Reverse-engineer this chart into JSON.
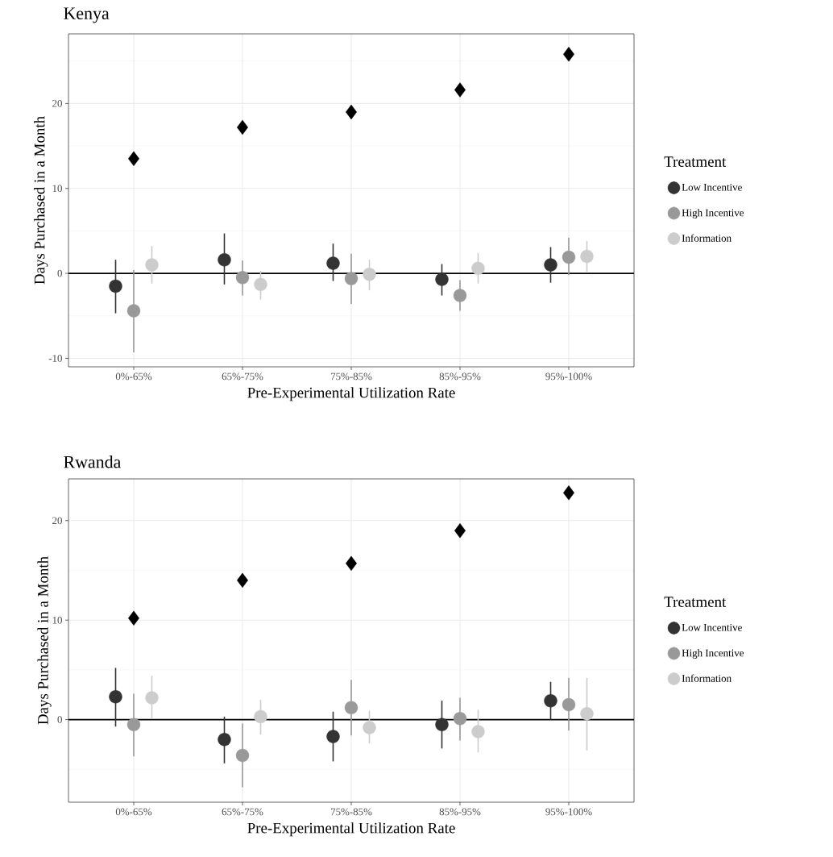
{
  "chart_data": [
    {
      "type": "scatter",
      "title": "Kenya",
      "xlabel": "Pre-Experimental Utilization Rate",
      "ylabel": "Days Purchased in a Month",
      "legend_title": "Treatment",
      "categories": [
        "0%-65%",
        "65%-75%",
        "75%-85%",
        "85%-95%",
        "95%-100%"
      ],
      "ylim": [
        -11,
        28.2
      ],
      "yticks": [
        -10,
        0,
        10,
        20
      ],
      "grid": true,
      "legend": "right",
      "ref_lines": [
        {
          "axis": "y",
          "value": 0,
          "color": "#000000"
        }
      ],
      "series": [
        {
          "name": "Low Incentive",
          "color": "#333333",
          "marker": "circle",
          "values": [
            -1.5,
            1.6,
            1.2,
            -0.7,
            1.0
          ],
          "errors": [
            [
              -4.7,
              1.6
            ],
            [
              -1.3,
              4.7
            ],
            [
              -0.9,
              3.5
            ],
            [
              -2.6,
              1.1
            ],
            [
              -1.1,
              3.1
            ]
          ]
        },
        {
          "name": "High Incentive",
          "color": "#999999",
          "marker": "circle",
          "values": [
            -4.4,
            -0.5,
            -0.6,
            -2.6,
            1.9
          ],
          "errors": [
            [
              -9.3,
              0.4
            ],
            [
              -2.6,
              1.5
            ],
            [
              -3.6,
              2.3
            ],
            [
              -4.4,
              -0.8
            ],
            [
              -0.2,
              4.2
            ]
          ]
        },
        {
          "name": "Information",
          "color": "#cccccc",
          "marker": "circle",
          "values": [
            1.0,
            -1.3,
            -0.1,
            0.6,
            2.0
          ],
          "errors": [
            [
              -1.2,
              3.2
            ],
            [
              -3.1,
              0.3
            ],
            [
              -2.0,
              1.6
            ],
            [
              -1.2,
              2.4
            ],
            [
              0.2,
              3.8
            ]
          ]
        },
        {
          "color": "#000000",
          "marker": "diamond",
          "values": [
            13.5,
            17.2,
            19.0,
            21.6,
            25.8
          ]
        }
      ]
    },
    {
      "type": "scatter",
      "title": "Rwanda",
      "xlabel": "Pre-Experimental Utilization Rate",
      "ylabel": "Days Purchased in a Month",
      "legend_title": "Treatment",
      "categories": [
        "0%-65%",
        "65%-75%",
        "75%-85%",
        "85%-95%",
        "95%-100%"
      ],
      "ylim": [
        -8.3,
        24.2
      ],
      "yticks": [
        0,
        10,
        20
      ],
      "grid": true,
      "legend": "right",
      "ref_lines": [
        {
          "axis": "y",
          "value": 0,
          "color": "#000000"
        }
      ],
      "series": [
        {
          "name": "Low Incentive",
          "color": "#333333",
          "marker": "circle",
          "values": [
            2.3,
            -2.0,
            -1.7,
            -0.5,
            1.9
          ],
          "errors": [
            [
              -0.7,
              5.2
            ],
            [
              -4.4,
              0.3
            ],
            [
              -4.2,
              0.8
            ],
            [
              -2.9,
              1.9
            ],
            [
              0.0,
              3.8
            ]
          ]
        },
        {
          "name": "High Incentive",
          "color": "#999999",
          "marker": "circle",
          "values": [
            -0.5,
            -3.6,
            1.2,
            0.1,
            1.5
          ],
          "errors": [
            [
              -3.7,
              2.6
            ],
            [
              -6.8,
              -0.4
            ],
            [
              -1.6,
              4.0
            ],
            [
              -2.1,
              2.2
            ],
            [
              -1.1,
              4.2
            ]
          ]
        },
        {
          "name": "Information",
          "color": "#cccccc",
          "marker": "circle",
          "values": [
            2.2,
            0.3,
            -0.8,
            -1.2,
            0.6
          ],
          "errors": [
            [
              0.1,
              4.4
            ],
            [
              -1.5,
              2.0
            ],
            [
              -2.4,
              0.9
            ],
            [
              -3.3,
              1.0
            ],
            [
              -3.1,
              4.2
            ]
          ]
        },
        {
          "color": "#000000",
          "marker": "diamond",
          "values": [
            10.2,
            14.0,
            15.7,
            19.0,
            22.8
          ]
        }
      ]
    }
  ]
}
